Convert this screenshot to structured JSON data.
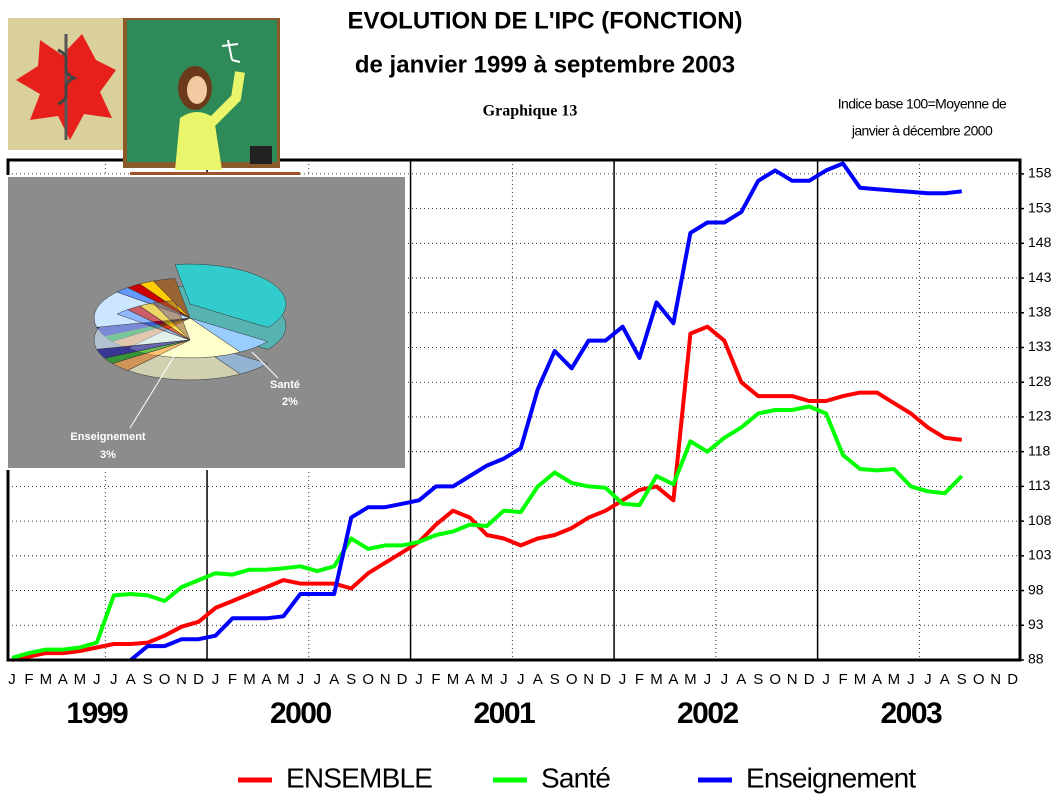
{
  "chart_data": {
    "type": "line",
    "title": "EVOLUTION DE L'IPC (FONCTION)",
    "subtitle": "de janvier 1999 à septembre 2003",
    "graph_label": "Graphique 13",
    "note": [
      "Indice base 100=Moyenne de",
      "janvier à décembre 2000"
    ],
    "categories": [
      "J",
      "F",
      "M",
      "A",
      "M",
      "J",
      "J",
      "A",
      "S",
      "O",
      "N",
      "D",
      "J",
      "F",
      "M",
      "A",
      "M",
      "J",
      "J",
      "A",
      "S",
      "O",
      "N",
      "D",
      "J",
      "F",
      "M",
      "A",
      "M",
      "J",
      "J",
      "A",
      "S",
      "O",
      "N",
      "D",
      "J",
      "F",
      "M",
      "A",
      "M",
      "J",
      "J",
      "A",
      "S",
      "O",
      "N",
      "D",
      "J",
      "F",
      "M",
      "A",
      "M",
      "J",
      "J",
      "A",
      "S",
      "O",
      "N",
      "D"
    ],
    "year_labels": [
      "1999",
      "2000",
      "2001",
      "2002",
      "2003"
    ],
    "ylim": [
      88,
      160
    ],
    "yticks": [
      88,
      93,
      98,
      103,
      108,
      113,
      118,
      123,
      128,
      133,
      138,
      143,
      148,
      153,
      158
    ],
    "grid": true,
    "legend": "bottom",
    "series": [
      {
        "name": "ENSEMBLE",
        "color": "#ff0000",
        "values": [
          88,
          88.5,
          89,
          89,
          89.3,
          89.8,
          90.3,
          90.3,
          90.5,
          91.5,
          92.8,
          93.5,
          95.5,
          96.5,
          97.5,
          98.5,
          99.5,
          99,
          99,
          99,
          98.3,
          100.5,
          102,
          103.5,
          105,
          107.5,
          109.5,
          108.5,
          106,
          105.5,
          104.5,
          105.5,
          106,
          107,
          108.5,
          109.5,
          111,
          112.5,
          113,
          111,
          135,
          136,
          134,
          128,
          126,
          126,
          126,
          125.3,
          125.3,
          126,
          126.5,
          126.5,
          125,
          123.5,
          121.5,
          120,
          119.7,
          null,
          null,
          null
        ]
      },
      {
        "name": "Santé",
        "color": "#00ff00",
        "values": [
          88.3,
          89,
          89.5,
          89.5,
          89.8,
          90.5,
          97.3,
          97.5,
          97.3,
          96.5,
          98.5,
          99.5,
          100.5,
          100.3,
          101,
          101,
          101.2,
          101.5,
          100.8,
          101.5,
          105.5,
          104,
          104.5,
          104.5,
          105,
          106,
          106.5,
          107.5,
          107.3,
          109.5,
          109.3,
          113,
          115,
          113.5,
          113,
          112.8,
          110.5,
          110.3,
          114.5,
          113.3,
          119.5,
          118,
          120,
          121.5,
          123.5,
          124,
          124,
          124.5,
          123.5,
          117.5,
          115.5,
          115.3,
          115.5,
          113,
          112.3,
          112,
          114.5,
          null,
          null,
          null
        ]
      },
      {
        "name": "Enseignement",
        "color": "#0000ff",
        "values": [
          null,
          null,
          null,
          null,
          null,
          null,
          null,
          88,
          90,
          90,
          91,
          91,
          91.5,
          94,
          94,
          94,
          94.3,
          97.5,
          97.5,
          97.5,
          108.5,
          110,
          110,
          110.5,
          111,
          113,
          113,
          114.5,
          116,
          117,
          118.5,
          127,
          132.5,
          130,
          134,
          134,
          136,
          131.5,
          139.5,
          136.5,
          149.5,
          151,
          151,
          152.5,
          157,
          158.5,
          157,
          157,
          158.5,
          159.5,
          156,
          155.8,
          155.6,
          155.4,
          155.2,
          155.2,
          155.5,
          null,
          null,
          null
        ]
      }
    ]
  },
  "inset": {
    "labels": [
      "Santé",
      "Enseignement"
    ],
    "values": [
      2,
      3
    ],
    "value_labels": [
      "2%",
      "3%"
    ],
    "colors": [
      "#009900",
      "#000099"
    ]
  }
}
